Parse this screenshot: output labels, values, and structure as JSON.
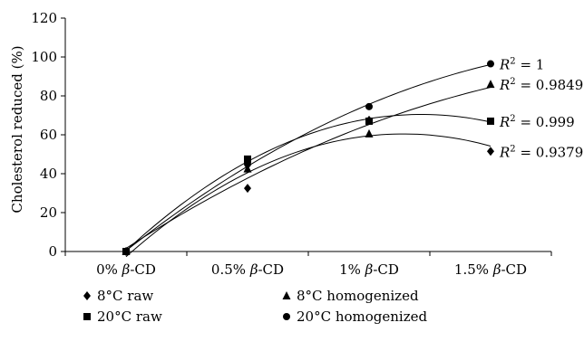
{
  "chart_data": {
    "type": "scatter",
    "title": "",
    "xlabel": "",
    "ylabel": "Cholesterol reduced (%)",
    "categories": [
      "0% β-CD",
      "0.5% β-CD",
      "1% β-CD",
      "1.5% β-CD"
    ],
    "ylim": [
      0,
      120
    ],
    "yticks": [
      "0",
      "20",
      "40",
      "60",
      "80",
      "100",
      "120"
    ],
    "grid": false,
    "legend_position": "bottom",
    "trendline": "polynomial-order-2",
    "series": [
      {
        "name": "8°C raw",
        "marker": "diamond",
        "values": [
          0,
          32.5,
          67.5,
          51.5
        ],
        "r2_label": "R2 = 0.9379",
        "r2_value": "0.9379"
      },
      {
        "name": "8°C homogenized",
        "marker": "triangle",
        "values": [
          0,
          42.5,
          60.5,
          86
        ],
        "r2_label": "R2 = 0.9849",
        "r2_value": "0.9849"
      },
      {
        "name": "20°C raw",
        "marker": "square",
        "values": [
          0,
          47.5,
          67,
          67
        ],
        "r2_label": "R2 = 0.999",
        "r2_value": "0.999"
      },
      {
        "name": "20°C homogenized",
        "marker": "circle",
        "values": [
          0,
          45,
          74.5,
          96.5
        ],
        "r2_label": "R2 = 1",
        "r2_value": "1"
      }
    ]
  }
}
